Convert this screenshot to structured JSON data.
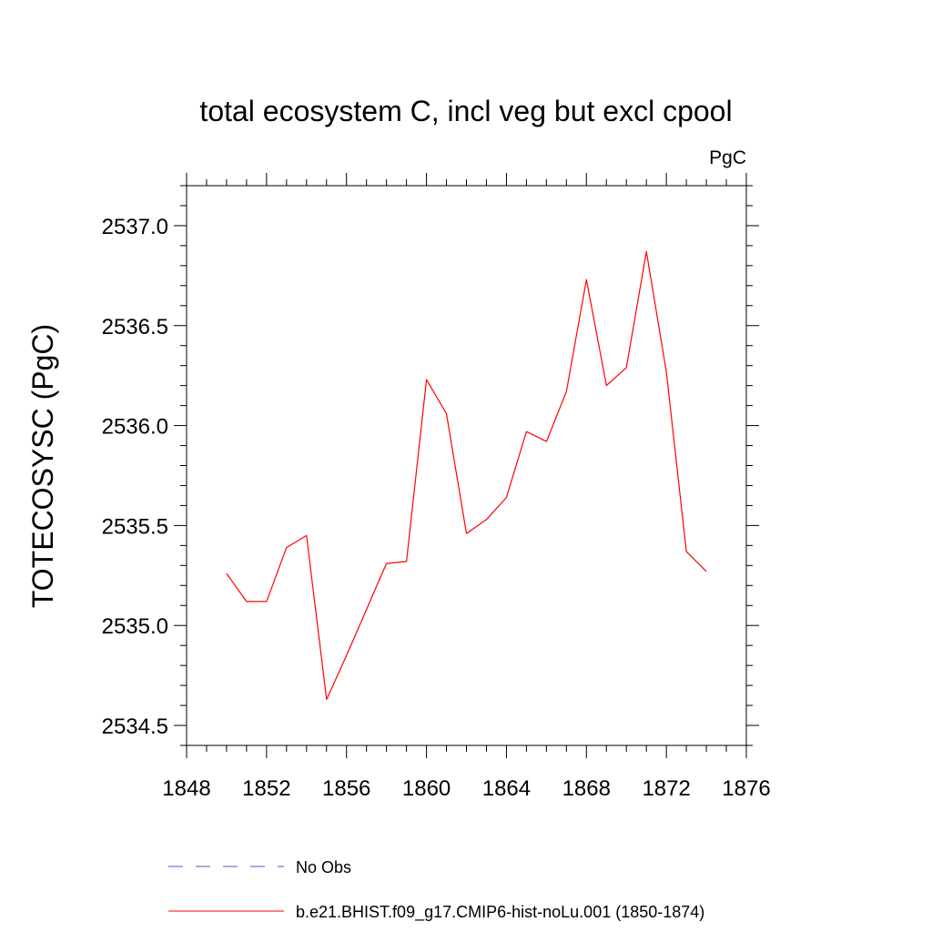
{
  "chart_data": {
    "type": "line",
    "title": "total ecosystem C, incl veg but excl cpool",
    "units_label": "PgC",
    "ylabel": "TOTECOSYSC  (PgC)",
    "xlabel": "",
    "xlim": [
      1848,
      1876
    ],
    "ylim": [
      2534.4,
      2537.2
    ],
    "x_ticks": [
      1848,
      1852,
      1856,
      1860,
      1864,
      1868,
      1872,
      1876
    ],
    "x_tick_labels": [
      "1848",
      "1852",
      "1856",
      "1860",
      "1864",
      "1868",
      "1872",
      "1876"
    ],
    "y_ticks": [
      2534.5,
      2535.0,
      2535.5,
      2536.0,
      2536.5,
      2537.0
    ],
    "y_tick_labels": [
      "2534.5",
      "2535.0",
      "2535.5",
      "2536.0",
      "2536.5",
      "2537.0"
    ],
    "grid": false,
    "legend_position": "bottom",
    "series": [
      {
        "name": "No Obs",
        "color": "#5555bb",
        "dash": "dashed",
        "x": [],
        "y": []
      },
      {
        "name": "b.e21.BHIST.f09_g17.CMIP6-hist-noLu.001 (1850-1874)",
        "color": "#ff0000",
        "dash": "solid",
        "x": [
          1850,
          1851,
          1852,
          1853,
          1854,
          1855,
          1856,
          1857,
          1858,
          1859,
          1860,
          1861,
          1862,
          1863,
          1864,
          1865,
          1866,
          1867,
          1868,
          1869,
          1870,
          1871,
          1872,
          1873,
          1874
        ],
        "y": [
          2535.26,
          2535.12,
          2535.12,
          2535.39,
          2535.45,
          2534.63,
          2534.85,
          2535.08,
          2535.31,
          2535.32,
          2536.23,
          2536.06,
          2535.46,
          2535.53,
          2535.64,
          2535.97,
          2535.92,
          2536.17,
          2536.73,
          2536.2,
          2536.29,
          2536.87,
          2536.27,
          2535.37,
          2535.27
        ]
      }
    ]
  }
}
